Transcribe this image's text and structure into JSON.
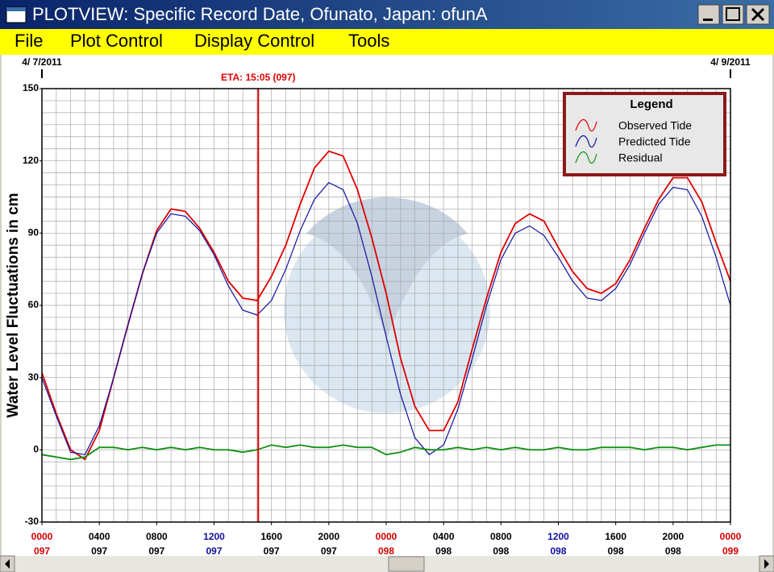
{
  "window": {
    "title": "PLOTVIEW: Specific Record Date, Ofunato, Japan: ofunA",
    "menu": [
      "File",
      "Plot Control",
      "Display Control",
      "Tools"
    ]
  },
  "chart_data": {
    "type": "line",
    "ylabel": "Water Level Fluctuations in cm",
    "x": [
      0,
      1,
      2,
      3,
      4,
      5,
      6,
      7,
      8,
      9,
      10,
      11,
      12,
      13,
      14,
      15,
      16,
      17,
      18,
      19,
      20,
      21,
      22,
      23,
      24,
      25,
      26,
      27,
      28,
      29,
      30,
      31,
      32,
      33,
      34,
      35,
      36,
      37,
      38,
      39,
      40,
      41,
      42,
      43,
      44,
      45,
      46,
      47,
      48
    ],
    "series": [
      {
        "name": "Observed Tide",
        "color": "#e00000",
        "values": [
          32,
          15,
          0,
          -4,
          8,
          30,
          52,
          73,
          91,
          100,
          99,
          92,
          82,
          70,
          63,
          62,
          72,
          85,
          102,
          117,
          124,
          122,
          108,
          88,
          65,
          38,
          18,
          8,
          8,
          20,
          42,
          63,
          82,
          94,
          98,
          95,
          84,
          74,
          67,
          65,
          69,
          79,
          92,
          104,
          113,
          113,
          103,
          86,
          70
        ]
      },
      {
        "name": "Predicted Tide",
        "color": "#1010a0",
        "values": [
          30,
          14,
          -1,
          -2,
          10,
          30,
          52,
          73,
          90,
          98,
          97,
          91,
          81,
          68,
          58,
          56,
          62,
          75,
          91,
          104,
          111,
          108,
          94,
          72,
          47,
          23,
          5,
          -2,
          2,
          17,
          38,
          60,
          79,
          90,
          93,
          89,
          80,
          70,
          63,
          62,
          67,
          77,
          90,
          102,
          109,
          108,
          97,
          80,
          60
        ]
      },
      {
        "name": "Residual",
        "color": "#109010",
        "values": [
          -2,
          -3,
          -4,
          -3,
          1,
          1,
          0,
          1,
          0,
          1,
          0,
          1,
          0,
          0,
          -1,
          0,
          2,
          1,
          2,
          1,
          1,
          2,
          1,
          1,
          -2,
          -1,
          1,
          0,
          0,
          1,
          0,
          1,
          0,
          1,
          0,
          0,
          1,
          0,
          0,
          1,
          1,
          1,
          0,
          1,
          1,
          0,
          1,
          2,
          2
        ]
      }
    ],
    "xlim": [
      0,
      48
    ],
    "ylim": [
      -30,
      150
    ],
    "yticks": [
      -30,
      0,
      30,
      60,
      90,
      120,
      150
    ],
    "xticks": [
      {
        "value": 0,
        "label": "0000",
        "sublabel": "097",
        "color": "#d00000"
      },
      {
        "value": 4,
        "label": "0400",
        "sublabel": "097",
        "color": "#000000"
      },
      {
        "value": 8,
        "label": "0800",
        "sublabel": "097",
        "color": "#000000"
      },
      {
        "value": 12,
        "label": "1200",
        "sublabel": "097",
        "color": "#1010a0"
      },
      {
        "value": 16,
        "label": "1600",
        "sublabel": "097",
        "color": "#000000"
      },
      {
        "value": 20,
        "label": "2000",
        "sublabel": "097",
        "color": "#000000"
      },
      {
        "value": 24,
        "label": "0000",
        "sublabel": "098",
        "color": "#d00000"
      },
      {
        "value": 28,
        "label": "0400",
        "sublabel": "098",
        "color": "#000000"
      },
      {
        "value": 32,
        "label": "0800",
        "sublabel": "098",
        "color": "#000000"
      },
      {
        "value": 36,
        "label": "1200",
        "sublabel": "098",
        "color": "#1010a0"
      },
      {
        "value": 40,
        "label": "1600",
        "sublabel": "098",
        "color": "#000000"
      },
      {
        "value": 44,
        "label": "2000",
        "sublabel": "098",
        "color": "#000000"
      },
      {
        "value": 48,
        "label": "0000",
        "sublabel": "099",
        "color": "#d00000"
      }
    ],
    "xgrid": [
      0,
      1,
      2,
      3,
      4,
      5,
      6,
      7,
      8,
      9,
      10,
      11,
      12,
      13,
      14,
      15,
      16,
      17,
      18,
      19,
      20,
      21,
      22,
      23,
      24,
      25,
      26,
      27,
      28,
      29,
      30,
      31,
      32,
      33,
      34,
      35,
      36,
      37,
      38,
      39,
      40,
      41,
      42,
      43,
      44,
      45,
      46,
      47,
      48
    ],
    "ygrid": [
      -30,
      -25,
      -20,
      -15,
      -10,
      -5,
      0,
      5,
      10,
      15,
      20,
      25,
      30,
      35,
      40,
      45,
      50,
      55,
      60,
      65,
      70,
      75,
      80,
      85,
      90,
      95,
      100,
      105,
      110,
      115,
      120,
      125,
      130,
      135,
      140,
      145,
      150
    ],
    "dates": [
      {
        "value": 0,
        "label": "4/ 7/2011"
      },
      {
        "value": 48,
        "label": "4/ 9/2011"
      }
    ],
    "eta": {
      "value": 15.08,
      "label": "ETA: 15:05 (097)",
      "color": "#e00000"
    },
    "legend": {
      "title": "Legend",
      "position": "upper right"
    },
    "grid": true
  }
}
